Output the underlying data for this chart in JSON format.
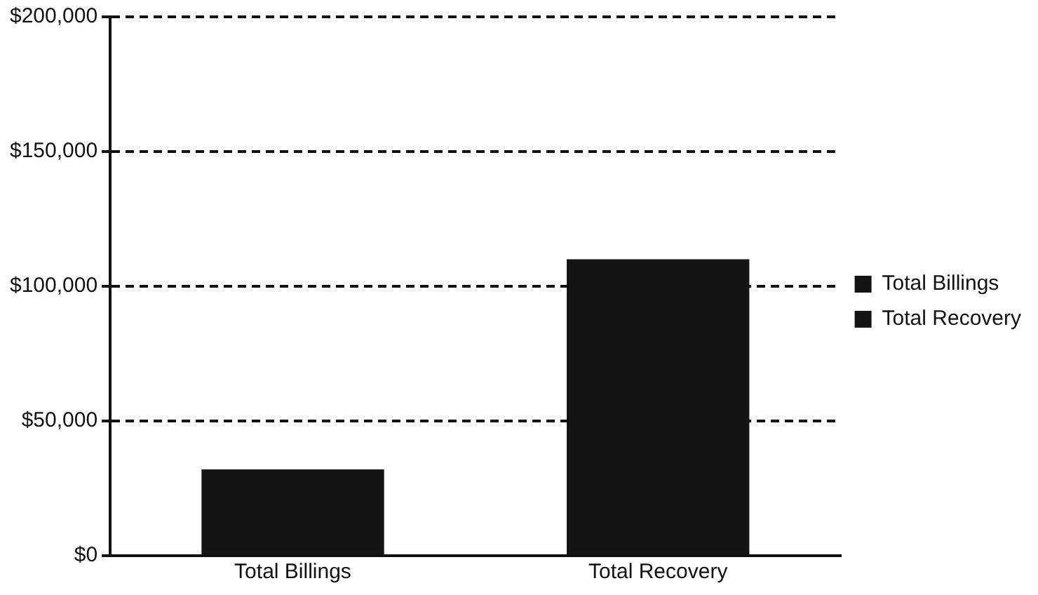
{
  "chart_data": {
    "type": "bar",
    "categories": [
      "Total Billings",
      "Total Recovery"
    ],
    "series": [
      {
        "name": "Total Billings",
        "color": "#141414",
        "values": [
          32000,
          null
        ]
      },
      {
        "name": "Total Recovery",
        "color": "#141414",
        "values": [
          null,
          110000
        ]
      }
    ],
    "ylim": [
      0,
      200000
    ],
    "yticks": [
      {
        "value": 0,
        "label": "$0"
      },
      {
        "value": 50000,
        "label": "$50,000"
      },
      {
        "value": 100000,
        "label": "$100,000"
      },
      {
        "value": 150000,
        "label": "$150,000"
      },
      {
        "value": 200000,
        "label": "$200,000"
      }
    ],
    "grid": "y",
    "legend": "right"
  }
}
